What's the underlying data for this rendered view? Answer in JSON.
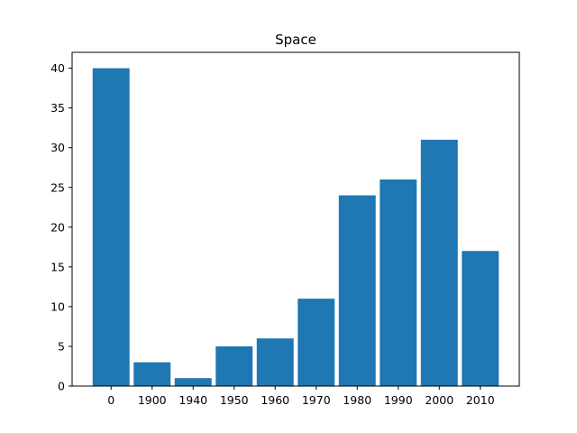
{
  "chart_data": {
    "type": "bar",
    "title": "Space",
    "xlabel": "",
    "ylabel": "",
    "categories": [
      "0",
      "1900",
      "1940",
      "1950",
      "1960",
      "1970",
      "1980",
      "1990",
      "2000",
      "2010"
    ],
    "values": [
      40,
      3,
      1,
      5,
      6,
      11,
      24,
      26,
      31,
      17
    ],
    "ylim": [
      0,
      42
    ],
    "yticks": [
      0,
      5,
      10,
      15,
      20,
      25,
      30,
      35,
      40
    ],
    "grid": false,
    "legend": "none",
    "bar_color": "#1f77b4"
  }
}
